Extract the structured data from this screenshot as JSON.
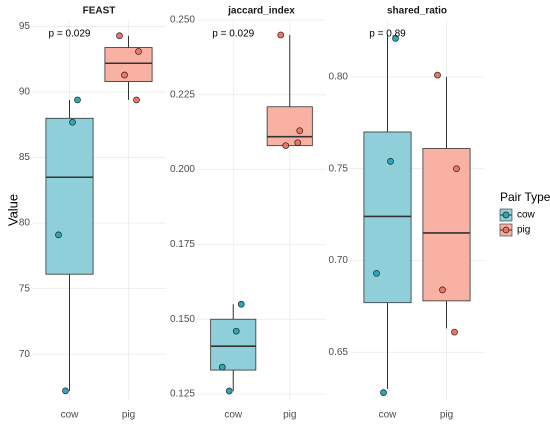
{
  "y_label": "Value",
  "legend": {
    "title": "Pair Type",
    "items": [
      {
        "name": "cow",
        "fill": "#8ecfd9",
        "point": "#2aa7b8"
      },
      {
        "name": "pig",
        "fill": "#f9b1a4",
        "point": "#f0745f"
      }
    ]
  },
  "chart_data": [
    {
      "type": "box",
      "title": "FEAST",
      "annotation": "p = 0.029",
      "categories": [
        "cow",
        "pig"
      ],
      "boxes": [
        {
          "whisker_low": 67.2,
          "q1": 76.1,
          "median": 83.5,
          "q3": 88.0,
          "whisker_high": 89.4
        },
        {
          "whisker_low": 89.4,
          "q1": 90.8,
          "median": 92.2,
          "q3": 93.4,
          "whisker_high": 94.3
        }
      ],
      "points": [
        [
          89.4,
          87.7,
          79.1,
          67.2
        ],
        [
          94.3,
          93.1,
          91.3,
          89.4
        ]
      ],
      "ylim": [
        66.5,
        95.5
      ],
      "yticks": [
        70,
        75,
        80,
        85,
        90,
        95
      ],
      "grid": true
    },
    {
      "type": "box",
      "title": "jaccard_index",
      "annotation": "p = 0.029",
      "categories": [
        "cow",
        "pig"
      ],
      "boxes": [
        {
          "whisker_low": 0.126,
          "q1": 0.133,
          "median": 0.141,
          "q3": 0.15,
          "whisker_high": 0.155
        },
        {
          "whisker_low": 0.208,
          "q1": 0.208,
          "median": 0.211,
          "q3": 0.221,
          "whisker_high": 0.245
        }
      ],
      "points": [
        [
          0.155,
          0.146,
          0.134,
          0.126
        ],
        [
          0.245,
          0.213,
          0.208,
          0.209
        ]
      ],
      "ylim": [
        0.123,
        0.25
      ],
      "yticks": [
        0.125,
        {
          "value": 0.15,
          "label": "0.150"
        },
        0.175,
        {
          "value": 0.2,
          "label": "0.200"
        },
        0.225,
        {
          "value": 0.25,
          "label": "0.250"
        }
      ],
      "grid": true
    },
    {
      "type": "box",
      "title": "shared_ratio",
      "annotation": "p = 0.89",
      "categories": [
        "cow",
        "pig"
      ],
      "boxes": [
        {
          "whisker_low": 0.63,
          "q1": 0.677,
          "median": 0.724,
          "q3": 0.77,
          "whisker_high": 0.823
        },
        {
          "whisker_low": 0.663,
          "q1": 0.678,
          "median": 0.715,
          "q3": 0.761,
          "whisker_high": 0.8
        }
      ],
      "points": [
        [
          0.821,
          0.754,
          0.693,
          0.628
        ],
        [
          0.801,
          0.75,
          0.684,
          0.661
        ]
      ],
      "ylim": [
        0.624,
        0.831
      ],
      "yticks": [
        0.65,
        {
          "value": 0.7,
          "label": "0.70"
        },
        0.75,
        {
          "value": 0.8,
          "label": "0.80"
        }
      ],
      "grid": true
    }
  ]
}
